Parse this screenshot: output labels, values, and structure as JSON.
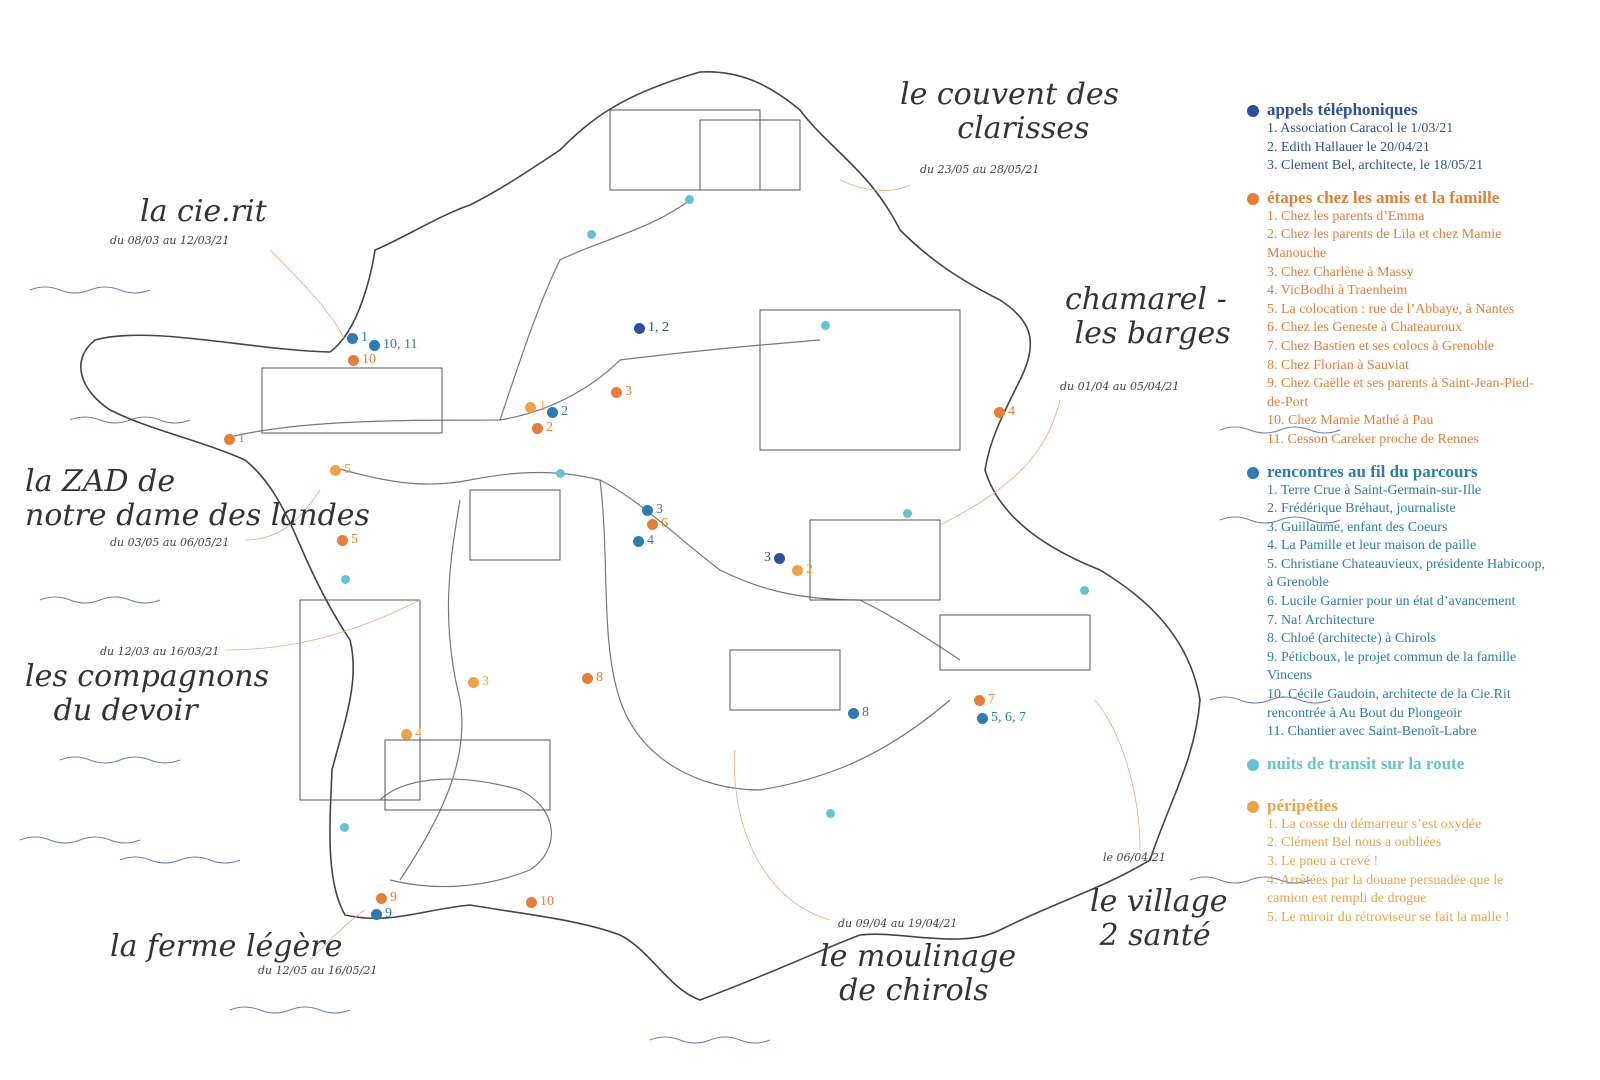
{
  "colors": {
    "calls": "#2c4f9e",
    "friends": "#e67e35",
    "meetings": "#2b7cb5",
    "transit": "#62c3d3",
    "mishaps": "#efa349",
    "outline": "#444444",
    "sea": "#6a78c4"
  },
  "places": [
    {
      "name": "la cie.rit",
      "date": "du 08/03 au 12/03/21"
    },
    {
      "name": "le couvent des\n      clarisses",
      "date": "du 23/05 au 28/05/21"
    },
    {
      "name": "chamarel -\n les barges",
      "date": "du 01/04 au 05/04/21"
    },
    {
      "name": "la ZAD de\nnotre dame des landes",
      "date": "du 03/05 au 06/05/21"
    },
    {
      "name": "les compagnons\n   du devoir",
      "date": "du 12/03 au 16/03/21"
    },
    {
      "name": "la ferme légère",
      "date": "du 12/05 au 16/05/21"
    },
    {
      "name": "le moulinage\n  de chirols",
      "date": "du 09/04 au 19/04/21"
    },
    {
      "name": "le village\n 2 santé",
      "date": "le 06/04/21"
    }
  ],
  "markers": [
    {
      "type": "meetings",
      "label": "1"
    },
    {
      "type": "meetings",
      "label": "10, 11"
    },
    {
      "type": "friends",
      "label": "10"
    },
    {
      "type": "friends",
      "label": "1"
    },
    {
      "type": "mishaps",
      "label": "5"
    },
    {
      "type": "friends",
      "label": "5"
    },
    {
      "type": "mishaps",
      "label": "1"
    },
    {
      "type": "meetings",
      "label": "2"
    },
    {
      "type": "friends",
      "label": "2"
    },
    {
      "type": "friends",
      "label": "3"
    },
    {
      "type": "calls",
      "label": "1, 2"
    },
    {
      "type": "meetings",
      "label": "3"
    },
    {
      "type": "friends",
      "label": "6"
    },
    {
      "type": "meetings",
      "label": "4"
    },
    {
      "type": "calls",
      "label": "3"
    },
    {
      "type": "mishaps",
      "label": "2"
    },
    {
      "type": "friends",
      "label": "4"
    },
    {
      "type": "friends",
      "label": "7"
    },
    {
      "type": "meetings",
      "label": "5, 6, 7"
    },
    {
      "type": "meetings",
      "label": "8"
    },
    {
      "type": "mishaps",
      "label": "3"
    },
    {
      "type": "friends",
      "label": "8"
    },
    {
      "type": "mishaps",
      "label": "4"
    },
    {
      "type": "friends",
      "label": "9"
    },
    {
      "type": "meetings",
      "label": "9"
    },
    {
      "type": "friends",
      "label": "10"
    }
  ],
  "legend": {
    "calls": {
      "title": "appels téléphoniques",
      "items": [
        "1. Association Caracol le 1/03/21",
        "2. Edith Hallauer le 20/04/21",
        "3. Clement Bel, architecte, le 18/05/21"
      ]
    },
    "friends": {
      "title": "étapes chez les amis et la famille",
      "items": [
        "1. Chez les parents d’Emma",
        "2. Chez les parents de Lila et chez Mamie Manouche",
        "3. Chez Charlène à Massy",
        "4. VicBodhi à Traenheim",
        "5. La colocation : rue de l’Abbaye, à Nantes",
        "6. Chez les Geneste à Chateauroux",
        "7. Chez Bastien et ses colocs à Grenoble",
        "8. Chez Florian à Sauviat",
        "9. Chez Gaëlle et ses parents à Saint-Jean-Pied-de-Port",
        "10. Chez Mamie Mathé à Pau",
        "11. Cesson Careker proche de Rennes"
      ]
    },
    "meetings": {
      "title": "rencontres au fil du parcours",
      "items": [
        "1. Terre Crue à Saint-Germain-sur-Ille",
        "2. Frédérique Bréhaut, journaliste",
        "3. Guillaume, enfant des Coeurs",
        "4. La Pamille et leur maison de paille",
        "5. Christiane Chateauvieux, présidente Habicoop, à Grenoble",
        "6. Lucile Garnier pour un état d’avancement",
        "7. Na! Architecture",
        "8. Chloé (architecte) à Chirols",
        "9. Péticboux, le projet commun de la famille Vincens",
        "10. Cécile Gaudoin, architecte de la Cie.Rit rencontrée à Au Bout du Plongeoir",
        "11. Chantier avec Saint-Benoît-Labre"
      ]
    },
    "transit": {
      "title": "nuits de transit sur la route",
      "items": []
    },
    "mishaps": {
      "title": "péripéties",
      "items": [
        "1. La cosse du démarreur s’est oxydée",
        "2. Clément Bel nous a oubliées",
        "3. Le pneu a crevé !",
        "4. Arrêtées par la douane persuadée que le camion est rempli de drogue",
        "5. Le miroir du rétroviseur se fait la malle !"
      ]
    }
  }
}
